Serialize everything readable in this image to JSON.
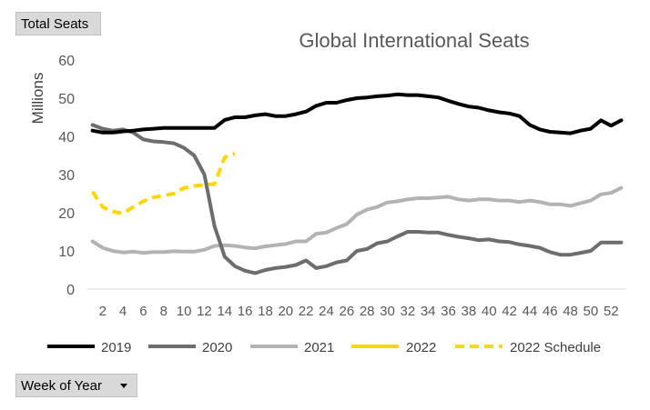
{
  "filter_buttons": {
    "total_seats": "Total Seats",
    "week_of_year": "Week of Year"
  },
  "colors": {
    "2019": "#000000",
    "2020": "#6d6d6d",
    "2021": "#b3b3b3",
    "2022": "#ffd700",
    "2022 Schedule": "#ffd700"
  },
  "chart_data": {
    "type": "line",
    "title": "Global International Seats",
    "ylabel": "Millions",
    "xlabel": "",
    "ylim": [
      0,
      60
    ],
    "yticks": [
      0,
      10,
      20,
      30,
      40,
      50,
      60
    ],
    "xlim": [
      1,
      53
    ],
    "xticks": [
      2,
      4,
      6,
      8,
      10,
      12,
      14,
      16,
      18,
      20,
      22,
      24,
      26,
      28,
      30,
      32,
      34,
      36,
      38,
      40,
      42,
      44,
      46,
      48,
      50,
      52
    ],
    "grid": false,
    "legend_position": "bottom",
    "series": [
      {
        "name": "2019",
        "dashed": false,
        "x": [
          1,
          2,
          3,
          4,
          5,
          6,
          7,
          8,
          9,
          10,
          11,
          12,
          13,
          14,
          15,
          16,
          17,
          18,
          19,
          20,
          21,
          22,
          23,
          24,
          25,
          26,
          27,
          28,
          29,
          30,
          31,
          32,
          33,
          34,
          35,
          36,
          37,
          38,
          39,
          40,
          41,
          42,
          43,
          44,
          45,
          46,
          47,
          48,
          49,
          50,
          51,
          52,
          53
        ],
        "values": [
          41.5,
          41,
          41,
          41.3,
          41.5,
          41.8,
          42,
          42.2,
          42.2,
          42.2,
          42.2,
          42.2,
          42.2,
          44.3,
          45,
          45,
          45.5,
          45.8,
          45.3,
          45.3,
          45.8,
          46.5,
          48,
          48.8,
          48.8,
          49.5,
          50,
          50.2,
          50.5,
          50.7,
          51,
          50.8,
          50.8,
          50.5,
          50.2,
          49.3,
          48.5,
          47.8,
          47.5,
          46.8,
          46.3,
          46,
          45.3,
          43,
          41.8,
          41.2,
          41,
          40.8,
          41.5,
          42,
          44.2,
          42.8,
          44.2
        ]
      },
      {
        "name": "2020",
        "dashed": false,
        "x": [
          1,
          2,
          3,
          4,
          5,
          6,
          7,
          8,
          9,
          10,
          11,
          12,
          13,
          14,
          15,
          16,
          17,
          18,
          19,
          20,
          21,
          22,
          23,
          24,
          25,
          26,
          27,
          28,
          29,
          30,
          31,
          32,
          33,
          34,
          35,
          36,
          37,
          38,
          39,
          40,
          41,
          42,
          43,
          44,
          45,
          46,
          47,
          48,
          49,
          50,
          51,
          52,
          53
        ],
        "values": [
          43,
          42,
          41.5,
          41.8,
          41,
          39.2,
          38.7,
          38.5,
          38.2,
          37,
          35,
          30,
          16.5,
          8.5,
          6,
          4.8,
          4.2,
          5,
          5.5,
          5.8,
          6.3,
          7.5,
          5.5,
          6,
          7,
          7.5,
          10,
          10.5,
          12,
          12.5,
          13.8,
          15,
          15,
          14.8,
          14.8,
          14.2,
          13.7,
          13.3,
          12.8,
          13,
          12.5,
          12.3,
          11.7,
          11.3,
          10.8,
          9.7,
          9,
          9,
          9.5,
          10,
          12.2,
          12.2,
          12.2
        ]
      },
      {
        "name": "2021",
        "dashed": false,
        "x": [
          1,
          2,
          3,
          4,
          5,
          6,
          7,
          8,
          9,
          10,
          11,
          12,
          13,
          14,
          15,
          16,
          17,
          18,
          19,
          20,
          21,
          22,
          23,
          24,
          25,
          26,
          27,
          28,
          29,
          30,
          31,
          32,
          33,
          34,
          35,
          36,
          37,
          38,
          39,
          40,
          41,
          42,
          43,
          44,
          45,
          46,
          47,
          48,
          49,
          50,
          51,
          52,
          53
        ],
        "values": [
          12.5,
          10.8,
          10,
          9.6,
          9.8,
          9.5,
          9.7,
          9.7,
          9.9,
          9.8,
          9.8,
          10.3,
          11.3,
          11.5,
          11.3,
          10.9,
          10.7,
          11.2,
          11.5,
          11.8,
          12.5,
          12.5,
          14.5,
          14.8,
          16,
          17,
          19.5,
          20.8,
          21.5,
          22.7,
          23,
          23.5,
          23.8,
          23.8,
          24,
          24.2,
          23.5,
          23.2,
          23.5,
          23.5,
          23.2,
          23.2,
          22.8,
          23.2,
          22.8,
          22.2,
          22.2,
          21.8,
          22.5,
          23.2,
          24.8,
          25.2,
          26.5
        ]
      },
      {
        "name": "2022",
        "dashed": false,
        "x": [
          1,
          2,
          3,
          4,
          5,
          6,
          7,
          8,
          9,
          10,
          11,
          12,
          13,
          14,
          15
        ],
        "values": [
          25.5,
          21.5,
          20.3,
          19.8,
          21.5,
          23,
          24,
          24.5,
          25,
          26.5,
          27,
          27.3,
          27.5,
          34.5,
          35.5
        ]
      },
      {
        "name": "2022 Schedule",
        "dashed": true,
        "x": [
          1,
          2,
          3,
          4,
          5,
          6,
          7,
          8,
          9,
          10,
          11,
          12,
          13,
          14,
          15
        ],
        "values": [
          25.5,
          21.5,
          20.3,
          19.8,
          21.5,
          23,
          24,
          24.5,
          25,
          26.5,
          27,
          27.3,
          27.5,
          34.5,
          35.5
        ]
      }
    ]
  }
}
